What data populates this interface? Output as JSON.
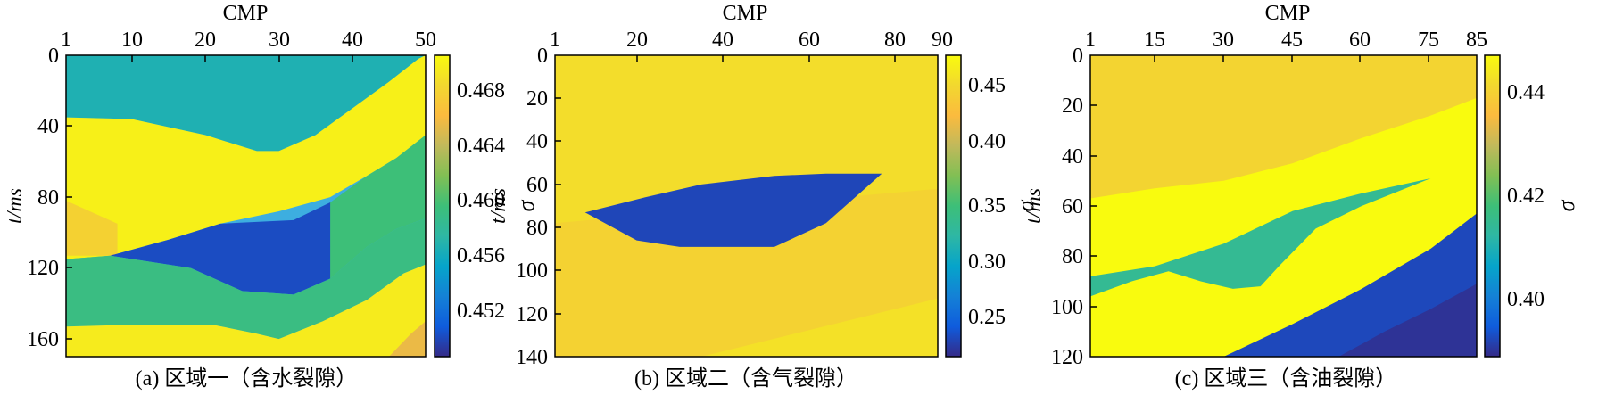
{
  "panels": [
    {
      "caption": "(a) 区域一（含水裂隙）",
      "xlabel": "CMP",
      "ylabel": "t/ms",
      "colorbar_label": "σ",
      "xticks": [
        "1",
        "10",
        "20",
        "30",
        "40",
        "50"
      ],
      "yticks": [
        "0",
        "40",
        "80",
        "120",
        "160"
      ],
      "cbticks": [
        "0.452",
        "0.456",
        "0.460",
        "0.464",
        "0.468"
      ]
    },
    {
      "caption": "(b) 区域二（含气裂隙）",
      "xlabel": "CMP",
      "ylabel": "t/ms",
      "colorbar_label": "σ",
      "xticks": [
        "1",
        "20",
        "40",
        "60",
        "80",
        "90"
      ],
      "yticks": [
        "0",
        "20",
        "40",
        "60",
        "80",
        "100",
        "120",
        "140"
      ],
      "cbticks": [
        "0.25",
        "0.30",
        "0.35",
        "0.40",
        "0.45"
      ]
    },
    {
      "caption": "(c) 区域三（含油裂隙）",
      "xlabel": "CMP",
      "ylabel": "t/ms",
      "colorbar_label": "σ",
      "xticks": [
        "1",
        "15",
        "30",
        "45",
        "60",
        "75",
        "85"
      ],
      "yticks": [
        "0",
        "20",
        "40",
        "60",
        "80",
        "100",
        "120"
      ],
      "cbticks": [
        "0.40",
        "0.42",
        "0.44"
      ]
    }
  ],
  "chart_data": [
    {
      "type": "heatmap",
      "title": "(a) 区域一（含水裂隙）",
      "xlabel": "CMP",
      "ylabel": "t/ms",
      "colorbar_label": "σ",
      "xlim": [
        1,
        50
      ],
      "ylim": [
        0,
        170
      ],
      "y_reversed": true,
      "colorbar_range": [
        0.4495,
        0.4715
      ],
      "colormap": "parula",
      "layers": [
        {
          "name": "top",
          "value": 0.4575,
          "top": [
            [
              1,
              0
            ],
            [
              50,
              0
            ]
          ],
          "bottom": [
            [
              1,
              35
            ],
            [
              10,
              36
            ],
            [
              20,
              45
            ],
            [
              27,
              54
            ],
            [
              30,
              54
            ],
            [
              35,
              45
            ],
            [
              40,
              30
            ],
            [
              45,
              15
            ],
            [
              49,
              2
            ],
            [
              50,
              0
            ]
          ]
        },
        {
          "name": "wedge",
          "value": 0.4708,
          "top": [
            [
              1,
              35
            ],
            [
              10,
              36
            ],
            [
              20,
              45
            ],
            [
              27,
              54
            ],
            [
              30,
              54
            ],
            [
              35,
              45
            ],
            [
              40,
              30
            ],
            [
              45,
              15
            ],
            [
              49,
              2
            ],
            [
              50,
              0
            ]
          ],
          "bottom": [
            [
              1,
              115
            ],
            [
              7,
              113
            ],
            [
              15,
              104
            ],
            [
              22,
              95
            ],
            [
              30,
              88
            ],
            [
              37,
              80
            ],
            [
              42,
              68
            ],
            [
              46,
              58
            ],
            [
              50,
              45
            ]
          ]
        },
        {
          "name": "wedge-left-tint",
          "value": 0.4688,
          "top": [
            [
              1,
              82
            ],
            [
              8,
              95
            ]
          ],
          "bottom": [
            [
              1,
              113
            ],
            [
              8,
              113
            ]
          ]
        },
        {
          "name": "lens",
          "value": 0.451,
          "top": [
            [
              7,
              113
            ],
            [
              15,
              104
            ],
            [
              22,
              95
            ],
            [
              32,
              93
            ],
            [
              37,
              83
            ]
          ],
          "bottom": [
            [
              7,
              113
            ],
            [
              18,
              120
            ],
            [
              25,
              133
            ],
            [
              32,
              135
            ],
            [
              37,
              126
            ],
            [
              40,
              105
            ],
            [
              37,
              83
            ]
          ]
        },
        {
          "name": "right-band",
          "value": 0.4605,
          "top": [
            [
              37,
              83
            ],
            [
              42,
              68
            ],
            [
              46,
              58
            ],
            [
              50,
              45
            ]
          ],
          "bottom": [
            [
              37,
              126
            ],
            [
              42,
              108
            ],
            [
              46,
              98
            ],
            [
              50,
              92
            ]
          ]
        },
        {
          "name": "middle-band",
          "value": 0.46,
          "top": [
            [
              1,
              115
            ],
            [
              7,
              113
            ],
            [
              18,
              120
            ],
            [
              25,
              133
            ],
            [
              32,
              135
            ],
            [
              37,
              126
            ],
            [
              42,
              108
            ],
            [
              46,
              98
            ],
            [
              50,
              92
            ]
          ],
          "bottom": [
            [
              1,
              153
            ],
            [
              10,
              152
            ],
            [
              21,
              152
            ],
            [
              27,
              157
            ],
            [
              30,
              160
            ],
            [
              36,
              150
            ],
            [
              42,
              138
            ],
            [
              47,
              123
            ],
            [
              50,
              118
            ]
          ]
        },
        {
          "name": "bottom",
          "value": 0.4705,
          "top": [
            [
              1,
              153
            ],
            [
              10,
              152
            ],
            [
              21,
              152
            ],
            [
              27,
              157
            ],
            [
              30,
              160
            ],
            [
              36,
              150
            ],
            [
              42,
              138
            ],
            [
              47,
              123
            ],
            [
              50,
              118
            ]
          ],
          "bottom": [
            [
              1,
              170
            ],
            [
              50,
              170
            ]
          ]
        },
        {
          "name": "bottom-right-tint",
          "value": 0.4665,
          "top": [
            [
              45,
              170
            ],
            [
              48,
              157
            ],
            [
              50,
              150
            ]
          ],
          "bottom": [
            [
              45,
              170
            ],
            [
              50,
              170
            ]
          ]
        }
      ]
    },
    {
      "type": "heatmap",
      "title": "(b) 区域二（含气裂隙）",
      "xlabel": "CMP",
      "ylabel": "t/ms",
      "colorbar_label": "σ",
      "xlim": [
        1,
        90
      ],
      "ylim": [
        0,
        140
      ],
      "y_reversed": true,
      "colorbar_range": [
        0.21,
        0.475
      ],
      "colormap": "parula",
      "layers": [
        {
          "name": "upper",
          "value": 0.452,
          "top": [
            [
              1,
              0
            ],
            [
              90,
              0
            ]
          ],
          "bottom": [
            [
              1,
              78
            ],
            [
              90,
              62
            ]
          ]
        },
        {
          "name": "lower",
          "value": 0.443,
          "top": [
            [
              1,
              78
            ],
            [
              90,
              62
            ]
          ],
          "bottom": [
            [
              1,
              140
            ],
            [
              90,
              140
            ]
          ]
        },
        {
          "name": "lower-shade",
          "value": 0.455,
          "top": [
            [
              35,
              140
            ],
            [
              90,
              113
            ]
          ],
          "bottom": [
            [
              35,
              140
            ],
            [
              90,
              140
            ]
          ]
        },
        {
          "name": "gas-lens",
          "value": 0.225,
          "top": [
            [
              8,
              73
            ],
            [
              22,
              66
            ],
            [
              35,
              60
            ],
            [
              52,
              56
            ],
            [
              64,
              55
            ],
            [
              77,
              55
            ]
          ],
          "bottom": [
            [
              8,
              73
            ],
            [
              20,
              86
            ],
            [
              30,
              89
            ],
            [
              52,
              89
            ],
            [
              64,
              78
            ],
            [
              77,
              55
            ]
          ]
        }
      ]
    },
    {
      "type": "heatmap",
      "title": "(c) 区域三（含油裂隙）",
      "xlabel": "CMP",
      "ylabel": "t/ms",
      "colorbar_label": "σ",
      "xlim": [
        1,
        85
      ],
      "ylim": [
        0,
        120
      ],
      "y_reversed": true,
      "colorbar_range": [
        0.389,
        0.447
      ],
      "colormap": "parula",
      "layers": [
        {
          "name": "top",
          "value": 0.4405,
          "top": [
            [
              1,
              0
            ],
            [
              85,
              0
            ]
          ],
          "bottom": [
            [
              1,
              57
            ],
            [
              15,
              53
            ],
            [
              30,
              50
            ],
            [
              45,
              43
            ],
            [
              60,
              33
            ],
            [
              75,
              24
            ],
            [
              85,
              17
            ]
          ]
        },
        {
          "name": "middle",
          "value": 0.447,
          "top": [
            [
              1,
              57
            ],
            [
              15,
              53
            ],
            [
              30,
              50
            ],
            [
              45,
              43
            ],
            [
              60,
              33
            ],
            [
              75,
              24
            ],
            [
              85,
              17
            ]
          ],
          "bottom": [
            [
              1,
              120
            ],
            [
              85,
              120
            ]
          ]
        },
        {
          "name": "oil-lens",
          "value": 0.4145,
          "top": [
            [
              1,
              88
            ],
            [
              15,
              84
            ],
            [
              30,
              75
            ],
            [
              45,
              62
            ],
            [
              60,
              55
            ],
            [
              75,
              49
            ]
          ],
          "bottom": [
            [
              1,
              96
            ],
            [
              10,
              90
            ],
            [
              18,
              86
            ],
            [
              25,
              90
            ],
            [
              32,
              93
            ],
            [
              38,
              92
            ],
            [
              42,
              84
            ],
            [
              50,
              69
            ],
            [
              60,
              60
            ],
            [
              75,
              49
            ]
          ]
        },
        {
          "name": "bottom",
          "value": 0.3925,
          "top": [
            [
              30,
              120
            ],
            [
              45,
              107
            ],
            [
              60,
              93
            ],
            [
              75,
              77
            ],
            [
              85,
              63
            ]
          ],
          "bottom": [
            [
              30,
              120
            ],
            [
              85,
              120
            ]
          ]
        },
        {
          "name": "bottom-shade",
          "value": 0.39,
          "top": [
            [
              55,
              120
            ],
            [
              65,
              110
            ],
            [
              75,
              101
            ],
            [
              85,
              91
            ]
          ],
          "bottom": [
            [
              55,
              120
            ],
            [
              85,
              120
            ]
          ]
        }
      ]
    }
  ]
}
